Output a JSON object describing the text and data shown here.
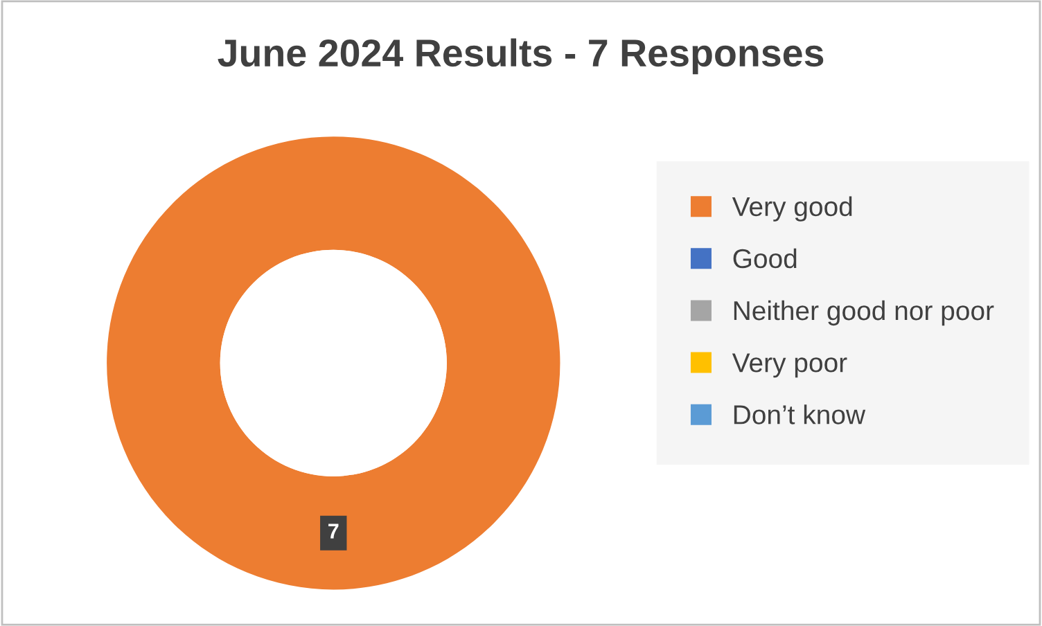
{
  "chart_data": {
    "type": "donut",
    "title": "June 2024 Results - 7 Responses",
    "categories": [
      "Very good",
      "Good",
      "Neither good nor poor",
      "Very poor",
      "Don’t know"
    ],
    "values": [
      7,
      0,
      0,
      0,
      0
    ],
    "colors": [
      "#ed7d31",
      "#4472c4",
      "#a5a5a5",
      "#ffc000",
      "#5b9bd5"
    ],
    "value_labels": [
      "7",
      null,
      null,
      null,
      null
    ],
    "legend": "right"
  }
}
